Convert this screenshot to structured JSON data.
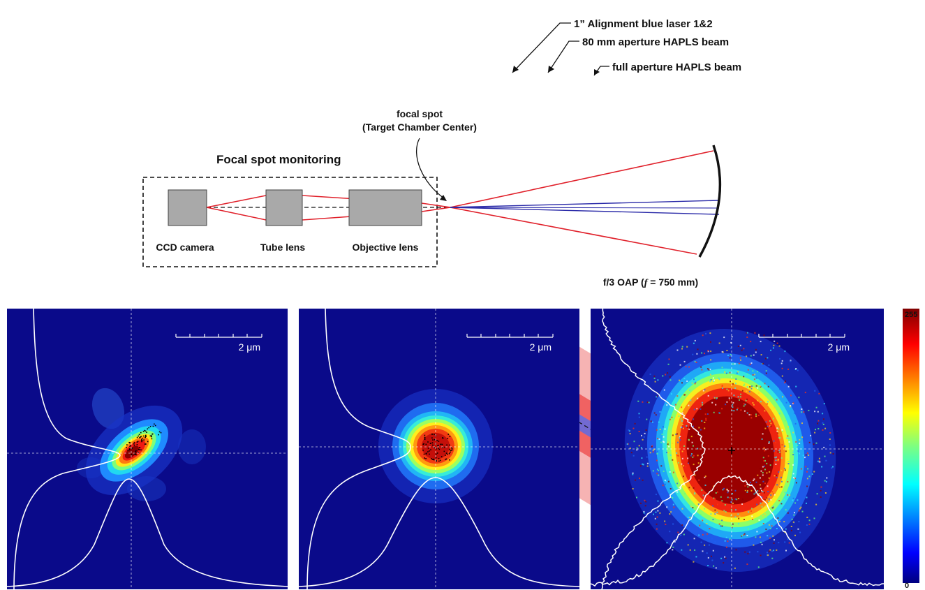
{
  "setup": {
    "label_alignment_laser": "1” Alignment blue laser 1&2",
    "label_80mm_beam": "80 mm aperture HAPLS beam",
    "label_full_beam": "full aperture HAPLS beam",
    "label_focal_spot_line1": "focal spot",
    "label_focal_spot_line2": "(Target Chamber Center)",
    "label_monitoring": "Focal spot monitoring",
    "label_ccd": "CCD camera",
    "label_tube_lens": "Tube lens",
    "label_objective": "Objective lens",
    "label_oap_prefix": "f/3 OAP (",
    "label_oap_f": "f",
    "label_oap_suffix": " = 750 mm)"
  },
  "colors": {
    "red_ray": "#e0202a",
    "blue_ray": "#2a2aa8",
    "full_beam": "#f5a6a6",
    "beam_80mm": "#ef4d4d",
    "alignment_laser": "#6a6ad8",
    "lens_gray": "#a9a9a9",
    "map_background": "#0a0a8a"
  },
  "panels": [
    {
      "name": "focal-spot-image-1",
      "scale_label": "2 μm",
      "kind": "tilted-elongated",
      "noise": false
    },
    {
      "name": "focal-spot-image-2",
      "scale_label": "2 μm",
      "kind": "round",
      "noise": false
    },
    {
      "name": "focal-spot-image-3",
      "scale_label": "2 μm",
      "kind": "large-noisy",
      "noise": true
    }
  ],
  "colorbar": {
    "max_label": "255",
    "min_label": "0",
    "colormap": "jet"
  }
}
